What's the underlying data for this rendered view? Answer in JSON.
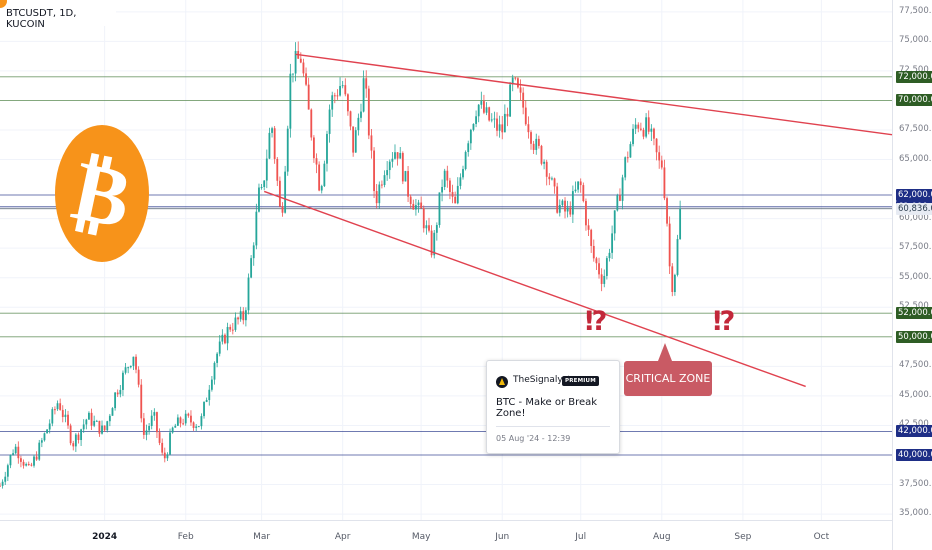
{
  "symbol_label": "BTCUSDT, 1D, KUCOIN",
  "logo_glyph": "₿",
  "callout": {
    "author": "TheSignalyst",
    "badge": "PREMIUM",
    "title": "BTC - Make or Break Zone!",
    "timestamp": "05 Aug '24 - 12:39"
  },
  "critical_zone_label": "CRITICAL ZONE",
  "interrobang": "⁉",
  "colors": {
    "bull": "#26a69a",
    "bear": "#ef5350",
    "trend": "#e0424f",
    "green_level": "#5b8a53",
    "green_label": "#2e5d25",
    "blue_level": "#1e2e86",
    "current": "#2c3e50",
    "bitcoin": "#f7931a"
  },
  "chart_data": {
    "type": "candlestick",
    "symbol": "BTCUSDT",
    "timeframe": "1D",
    "exchange": "KUCOIN",
    "y_axis": {
      "ticks": [
        "77,500.0",
        "75,000.0",
        "72,500.0",
        "67,500.0",
        "65,000.0",
        "60,000.0",
        "57,500.0",
        "55,000.0",
        "52,500.0",
        "47,500.0",
        "45,000.0",
        "42,500.0",
        "37,500.0",
        "35,000.0"
      ],
      "range": [
        34500,
        78500
      ]
    },
    "x_axis": {
      "labels": [
        {
          "label": "2024",
          "bold": true,
          "date": "2024-01-01"
        },
        {
          "label": "Feb",
          "date": "2024-02-01"
        },
        {
          "label": "Mar",
          "date": "2024-03-01"
        },
        {
          "label": "Apr",
          "date": "2024-04-01"
        },
        {
          "label": "May",
          "date": "2024-05-01"
        },
        {
          "label": "Jun",
          "date": "2024-06-01"
        },
        {
          "label": "Jul",
          "date": "2024-07-01"
        },
        {
          "label": "Aug",
          "date": "2024-08-01"
        },
        {
          "label": "Sep",
          "date": "2024-09-01"
        },
        {
          "label": "Oct",
          "date": "2024-10-01"
        }
      ],
      "range": [
        "2023-11-22",
        "2024-10-28"
      ]
    },
    "levels": [
      {
        "price": 72000,
        "label": "72,000.0",
        "kind": "green"
      },
      {
        "price": 70000,
        "label": "70,000.0",
        "kind": "green"
      },
      {
        "price": 62000,
        "label": "62,000.0",
        "kind": "blue"
      },
      {
        "price": 61000,
        "label": "61,000.0",
        "kind": "blue"
      },
      {
        "price": 60836,
        "label": "60,836.0",
        "kind": "current"
      },
      {
        "price": 52000,
        "label": "52,000.0",
        "kind": "green"
      },
      {
        "price": 50000,
        "label": "50,000.0",
        "kind": "green"
      },
      {
        "price": 42000,
        "label": "42,000.0",
        "kind": "blue"
      },
      {
        "price": 40000,
        "label": "40,000.0",
        "kind": "blue"
      }
    ],
    "trendlines": [
      {
        "from": {
          "date": "2024-03-14",
          "price": 73900
        },
        "to": {
          "date": "2024-10-28",
          "price": 67100
        }
      },
      {
        "from": {
          "date": "2024-03-02",
          "price": 62300
        },
        "to": {
          "date": "2024-09-25",
          "price": 45800
        }
      }
    ],
    "series": [
      {
        "from": "2023-11-22",
        "to": "2023-12-31",
        "points": [
          [
            37400,
            40800
          ],
          [
            40800,
            38600
          ],
          [
            38600,
            41500
          ],
          [
            41500,
            44600
          ],
          [
            44600,
            41000
          ],
          [
            41000,
            43200
          ],
          [
            43200,
            42100
          ]
        ]
      },
      {
        "from": "2024-01-01",
        "to": "2024-01-31",
        "points": [
          [
            42100,
            45000
          ],
          [
            45000,
            46900
          ],
          [
            46900,
            48700
          ],
          [
            48700,
            41700
          ],
          [
            41700,
            43300
          ],
          [
            43300,
            39400
          ],
          [
            39400,
            42300
          ],
          [
            42300,
            43000
          ]
        ]
      },
      {
        "from": "2024-02-01",
        "to": "2024-02-29",
        "points": [
          [
            43000,
            42600
          ],
          [
            42600,
            48200
          ],
          [
            48200,
            50900
          ],
          [
            50900,
            51700
          ],
          [
            51700,
            62000
          ]
        ]
      },
      {
        "from": "2024-03-01",
        "to": "2024-03-31",
        "points": [
          [
            62000,
            68300
          ],
          [
            68300,
            59600
          ],
          [
            59600,
            72800
          ],
          [
            72800,
            73600
          ],
          [
            73600,
            67700
          ],
          [
            67700,
            62400
          ],
          [
            62400,
            69800
          ],
          [
            69800,
            71300
          ]
        ]
      },
      {
        "from": "2024-04-01",
        "to": "2024-04-30",
        "points": [
          [
            71300,
            65800
          ],
          [
            65800,
            71900
          ],
          [
            71900,
            61400
          ],
          [
            61400,
            64900
          ],
          [
            64900,
            66000
          ],
          [
            66000,
            62400
          ],
          [
            62400,
            60600
          ]
        ]
      },
      {
        "from": "2024-05-01",
        "to": "2024-05-31",
        "points": [
          [
            60600,
            57200
          ],
          [
            57200,
            63900
          ],
          [
            63900,
            60800
          ],
          [
            60800,
            66300
          ],
          [
            66300,
            69800
          ],
          [
            69800,
            68400
          ],
          [
            68400,
            67500
          ]
        ]
      },
      {
        "from": "2024-06-01",
        "to": "2024-06-30",
        "points": [
          [
            67500,
            71500
          ],
          [
            71500,
            69300
          ],
          [
            69300,
            66200
          ],
          [
            66200,
            64800
          ],
          [
            64800,
            61300
          ],
          [
            61300,
            60400
          ],
          [
            60400,
            62700
          ]
        ]
      },
      {
        "from": "2024-07-01",
        "to": "2024-07-31",
        "points": [
          [
            62700,
            57000
          ],
          [
            57000,
            54800
          ],
          [
            54800,
            59800
          ],
          [
            59800,
            64900
          ],
          [
            64900,
            68200
          ],
          [
            68200,
            67600
          ],
          [
            67600,
            64600
          ]
        ]
      },
      {
        "from": "2024-08-01",
        "to": "2024-08-08",
        "points": [
          [
            64600,
            60800
          ],
          [
            60800,
            54000
          ],
          [
            54000,
            55900
          ],
          [
            55900,
            60836
          ]
        ]
      }
    ]
  }
}
